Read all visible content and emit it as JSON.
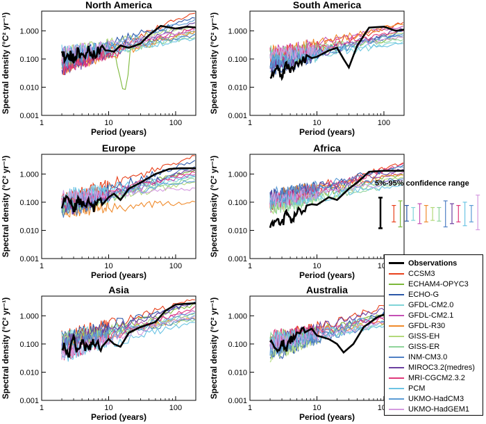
{
  "chart_data": [
    {
      "type": "line",
      "title": "North America",
      "xlabel": "Period (years)",
      "ylabel": "Spectral density (°C² yr⁻¹)",
      "x_scale": "log",
      "y_scale": "log",
      "xlim": [
        1,
        200
      ],
      "ylim": [
        0.001,
        5
      ],
      "xticks": [
        1,
        10,
        100
      ],
      "xtick_labels": [
        "1",
        "10",
        "100"
      ],
      "yticks": [
        0.001,
        0.01,
        0.1,
        1
      ],
      "ytick_labels": [
        "0.001",
        "0.010",
        "0.100",
        "1.000"
      ],
      "obs": [
        [
          2,
          0.2
        ],
        [
          2.3,
          0.08
        ],
        [
          2.7,
          0.15
        ],
        [
          3,
          0.1
        ],
        [
          3.5,
          0.2
        ],
        [
          4,
          0.12
        ],
        [
          5,
          0.2
        ],
        [
          6,
          0.15
        ],
        [
          8,
          0.25
        ],
        [
          10,
          0.2
        ],
        [
          12,
          0.18
        ],
        [
          15,
          0.3
        ],
        [
          20,
          0.25
        ],
        [
          30,
          0.35
        ],
        [
          40,
          0.7
        ],
        [
          60,
          1.5
        ],
        [
          100,
          1.2
        ],
        [
          150,
          1.4
        ],
        [
          200,
          1.3
        ]
      ],
      "model_end": [
        4.5,
        1.0,
        3.0,
        0.8,
        1.2,
        0.9,
        1.5,
        0.6,
        0.7,
        2.0,
        1.3,
        0.5,
        2.5,
        1.1
      ],
      "dip": {
        "series": "ECHAM4-OPYC3",
        "x": 17,
        "y": 0.005
      }
    },
    {
      "type": "line",
      "title": "South America",
      "xlabel": "Period (years)",
      "ylabel": "Spectral density (°C² yr⁻¹)",
      "x_scale": "log",
      "y_scale": "log",
      "xlim": [
        1,
        200
      ],
      "ylim": [
        0.001,
        5
      ],
      "xticks": [
        1,
        10,
        100
      ],
      "xtick_labels": [
        "1",
        "10",
        "100"
      ],
      "yticks": [
        0.001,
        0.01,
        0.1,
        1
      ],
      "ytick_labels": [
        "0.001",
        "0.010",
        "0.100",
        "1.000"
      ],
      "obs": [
        [
          2,
          0.02
        ],
        [
          2.5,
          0.05
        ],
        [
          3,
          0.03
        ],
        [
          3.5,
          0.06
        ],
        [
          4,
          0.04
        ],
        [
          5,
          0.08
        ],
        [
          7,
          0.1
        ],
        [
          10,
          0.12
        ],
        [
          15,
          0.2
        ],
        [
          20,
          0.25
        ],
        [
          25,
          0.1
        ],
        [
          30,
          0.05
        ],
        [
          40,
          0.3
        ],
        [
          60,
          1.3
        ],
        [
          100,
          1.4
        ],
        [
          150,
          1.0
        ],
        [
          200,
          1.1
        ]
      ],
      "model_end": [
        2.0,
        0.6,
        1.0,
        0.4,
        1.5,
        1.8,
        0.9,
        0.5,
        0.7,
        1.2,
        1.0,
        0.35,
        0.8,
        0.6
      ]
    },
    {
      "type": "line",
      "title": "Europe",
      "xlabel": "Period (years)",
      "ylabel": "Spectral density (°C² yr⁻¹)",
      "x_scale": "log",
      "y_scale": "log",
      "xlim": [
        1,
        200
      ],
      "ylim": [
        0.001,
        5
      ],
      "xticks": [
        1,
        10,
        100
      ],
      "xtick_labels": [
        "1",
        "10",
        "100"
      ],
      "yticks": [
        0.001,
        0.01,
        0.1,
        1
      ],
      "ytick_labels": [
        "0.001",
        "0.010",
        "0.100",
        "1.000"
      ],
      "obs": [
        [
          2,
          0.08
        ],
        [
          2.5,
          0.15
        ],
        [
          3,
          0.05
        ],
        [
          3.5,
          0.12
        ],
        [
          4,
          0.08
        ],
        [
          5,
          0.1
        ],
        [
          6,
          0.06
        ],
        [
          8,
          0.12
        ],
        [
          10,
          0.15
        ],
        [
          12,
          0.2
        ],
        [
          15,
          0.12
        ],
        [
          20,
          0.3
        ],
        [
          30,
          0.5
        ],
        [
          50,
          1.0
        ],
        [
          80,
          1.5
        ],
        [
          120,
          1.6
        ],
        [
          200,
          1.6
        ]
      ],
      "model_end": [
        4.5,
        1.5,
        3.0,
        0.8,
        1.0,
        0.1,
        0.5,
        0.7,
        2.0,
        1.5,
        1.2,
        0.9,
        0.6,
        0.3
      ]
    },
    {
      "type": "line",
      "title": "Africa",
      "xlabel": "Period (years)",
      "ylabel": "Spectral density (°C² yr⁻¹)",
      "x_scale": "log",
      "y_scale": "log",
      "xlim": [
        1,
        200
      ],
      "ylim": [
        0.001,
        5
      ],
      "xticks": [
        1,
        10,
        100
      ],
      "xtick_labels": [
        "1",
        "10",
        "100"
      ],
      "yticks": [
        0.001,
        0.01,
        0.1,
        1
      ],
      "ytick_labels": [
        "0.001",
        "0.010",
        "0.100",
        "1.000"
      ],
      "obs": [
        [
          2,
          0.01
        ],
        [
          2.5,
          0.03
        ],
        [
          3,
          0.015
        ],
        [
          3.5,
          0.05
        ],
        [
          4,
          0.02
        ],
        [
          5,
          0.05
        ],
        [
          7,
          0.06
        ],
        [
          10,
          0.08
        ],
        [
          15,
          0.15
        ],
        [
          20,
          0.12
        ],
        [
          30,
          0.3
        ],
        [
          40,
          0.5
        ],
        [
          60,
          1.2
        ],
        [
          100,
          1.3
        ],
        [
          150,
          1.3
        ],
        [
          200,
          1.3
        ]
      ],
      "model_end": [
        2.5,
        1.0,
        2.0,
        0.6,
        1.2,
        1.0,
        0.8,
        0.5,
        0.7,
        1.5,
        2.2,
        0.4,
        1.8,
        0.6
      ]
    },
    {
      "type": "line",
      "title": "Asia",
      "xlabel": "Period (years)",
      "ylabel": "Spectral density (°C² yr⁻¹)",
      "x_scale": "log",
      "y_scale": "log",
      "xlim": [
        1,
        200
      ],
      "ylim": [
        0.001,
        5
      ],
      "xticks": [
        1,
        10,
        100
      ],
      "xtick_labels": [
        "1",
        "10",
        "100"
      ],
      "yticks": [
        0.001,
        0.01,
        0.1,
        1
      ],
      "ytick_labels": [
        "0.001",
        "0.010",
        "0.100",
        "1.000"
      ],
      "obs": [
        [
          2,
          0.1
        ],
        [
          2.5,
          0.04
        ],
        [
          3,
          0.15
        ],
        [
          3.5,
          0.05
        ],
        [
          4,
          0.1
        ],
        [
          5,
          0.06
        ],
        [
          6,
          0.12
        ],
        [
          8,
          0.08
        ],
        [
          10,
          0.15
        ],
        [
          12,
          0.1
        ],
        [
          15,
          0.08
        ],
        [
          20,
          0.25
        ],
        [
          30,
          0.4
        ],
        [
          50,
          0.6
        ],
        [
          70,
          1.5
        ],
        [
          100,
          2.5
        ],
        [
          150,
          2.7
        ],
        [
          200,
          2.8
        ]
      ],
      "model_end": [
        4.0,
        2.5,
        3.0,
        1.0,
        1.5,
        0.9,
        1.2,
        0.7,
        0.8,
        3.0,
        2.0,
        0.6,
        1.3,
        1.0
      ]
    },
    {
      "type": "line",
      "title": "Australia",
      "xlabel": "Period (years)",
      "ylabel": "Spectral density (°C² yr⁻¹)",
      "x_scale": "log",
      "y_scale": "log",
      "xlim": [
        1,
        200
      ],
      "ylim": [
        0.001,
        5
      ],
      "xticks": [
        1,
        10,
        100
      ],
      "xtick_labels": [
        "1",
        "10",
        "100"
      ],
      "yticks": [
        0.001,
        0.01,
        0.1,
        1
      ],
      "ytick_labels": [
        "0.001",
        "0.010",
        "0.100",
        "1.000"
      ],
      "obs": [
        [
          2,
          0.15
        ],
        [
          2.5,
          0.05
        ],
        [
          3,
          0.12
        ],
        [
          3.5,
          0.08
        ],
        [
          4,
          0.15
        ],
        [
          5,
          0.2
        ],
        [
          7,
          0.3
        ],
        [
          10,
          0.2
        ],
        [
          15,
          0.15
        ],
        [
          20,
          0.1
        ],
        [
          25,
          0.05
        ],
        [
          35,
          0.1
        ],
        [
          50,
          0.4
        ],
        [
          80,
          0.9
        ],
        [
          120,
          1.3
        ],
        [
          200,
          1.4
        ]
      ],
      "model_end": [
        3.5,
        1.5,
        2.5,
        0.8,
        1.2,
        0.7,
        2.0,
        0.6,
        0.9,
        3.0,
        1.0,
        0.5,
        1.8,
        0.7
      ]
    }
  ],
  "legend": {
    "items": [
      {
        "name": "Observations",
        "color": "#000000",
        "bold": true
      },
      {
        "name": "CCSM3",
        "color": "#e8401a"
      },
      {
        "name": "ECHAM4-OPYC3",
        "color": "#7cb83a"
      },
      {
        "name": "ECHO-G",
        "color": "#2a56a8"
      },
      {
        "name": "GFDL-CM2.0",
        "color": "#7fd4d8"
      },
      {
        "name": "GFDL-CM2.1",
        "color": "#c44fb4"
      },
      {
        "name": "GFDL-R30",
        "color": "#f08a2a"
      },
      {
        "name": "GISS-EH",
        "color": "#b3d97a"
      },
      {
        "name": "GISS-ER",
        "color": "#8ed49a"
      },
      {
        "name": "INM-CM3.0",
        "color": "#4f7fc4"
      },
      {
        "name": "MIROC3.2(medres)",
        "color": "#6b3fa0"
      },
      {
        "name": "MRI-CGCM2.3.2",
        "color": "#e0387a"
      },
      {
        "name": "PCM",
        "color": "#6cc4e4"
      },
      {
        "name": "UKMO-HadCM3",
        "color": "#5b9bd5"
      },
      {
        "name": "UKMO-HadGEM1",
        "color": "#d49ae0"
      }
    ]
  },
  "confidence": {
    "title": "5%-95% confidence range",
    "bars": [
      {
        "color": "#000000",
        "low": 0.008,
        "high": 0.12
      },
      {
        "color": "#e8401a",
        "low": 0.014,
        "high": 0.06
      },
      {
        "color": "#7cb83a",
        "low": 0.009,
        "high": 0.09
      },
      {
        "color": "#2a56a8",
        "low": 0.015,
        "high": 0.06
      },
      {
        "color": "#7fd4d8",
        "low": 0.016,
        "high": 0.05
      },
      {
        "color": "#c44fb4",
        "low": 0.012,
        "high": 0.07
      },
      {
        "color": "#f08a2a",
        "low": 0.014,
        "high": 0.06
      },
      {
        "color": "#b3d97a",
        "low": 0.016,
        "high": 0.05
      },
      {
        "color": "#8ed49a",
        "low": 0.015,
        "high": 0.05
      },
      {
        "color": "#4f7fc4",
        "low": 0.009,
        "high": 0.09
      },
      {
        "color": "#6b3fa0",
        "low": 0.012,
        "high": 0.07
      },
      {
        "color": "#e0387a",
        "low": 0.014,
        "high": 0.06
      },
      {
        "color": "#6cc4e4",
        "low": 0.01,
        "high": 0.08
      },
      {
        "color": "#5b9bd5",
        "low": 0.014,
        "high": 0.06
      },
      {
        "color": "#d49ae0",
        "low": 0.007,
        "high": 0.15
      }
    ]
  }
}
